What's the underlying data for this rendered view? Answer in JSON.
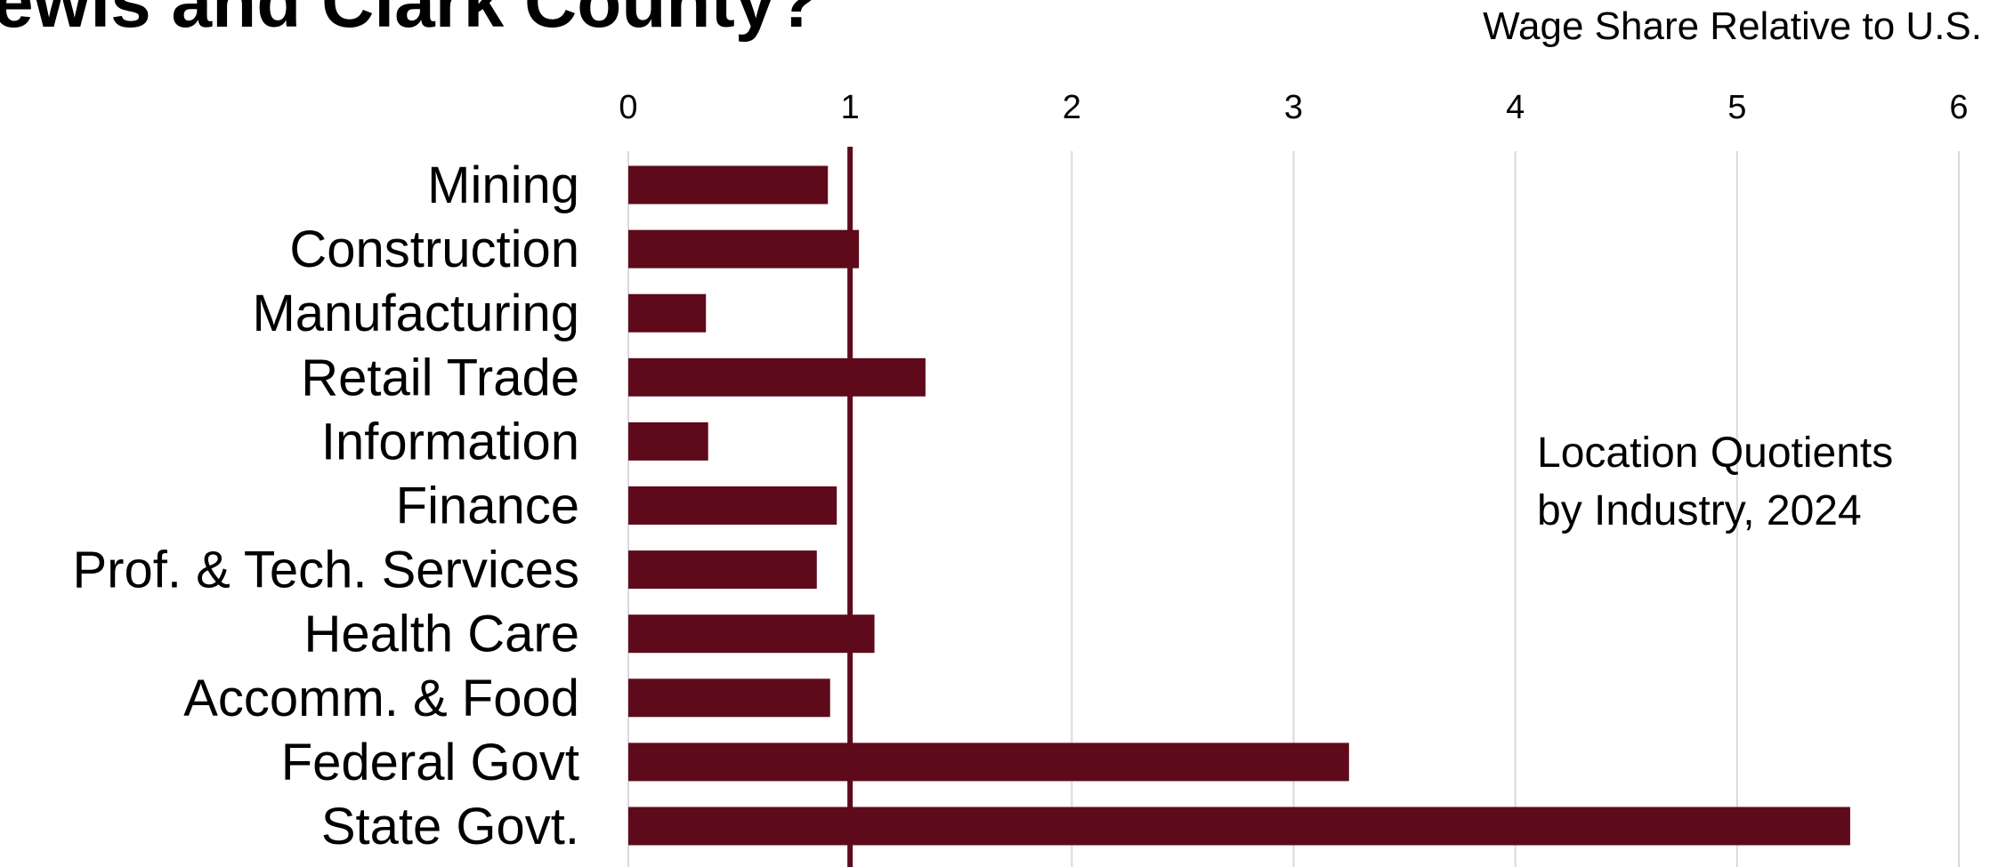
{
  "chart_data": {
    "type": "bar",
    "orientation": "horizontal",
    "title": "ewis and Clark County?",
    "subtitle": "Wage Share Relative to U.S.",
    "annotation": [
      "Location Quotients",
      "by Industry, 2024"
    ],
    "categories": [
      "Mining",
      "Construction",
      "Manufacturing",
      "Retail Trade",
      "Information",
      "Finance",
      "Prof. & Tech. Services",
      "Health Care",
      "Accomm. & Food",
      "Federal Govt",
      "State Govt."
    ],
    "values": [
      0.9,
      1.04,
      0.35,
      1.34,
      0.36,
      0.94,
      0.85,
      1.11,
      0.91,
      3.25,
      5.51
    ],
    "xlim": [
      0,
      6
    ],
    "xticks": [
      "0",
      "1",
      "2",
      "3",
      "4",
      "5",
      "6"
    ],
    "reference_line": 1,
    "grid": true,
    "colors": {
      "bar": "#5e0a1a",
      "reference_line": "#5e0a1a",
      "grid": "#d9d9d9"
    }
  }
}
